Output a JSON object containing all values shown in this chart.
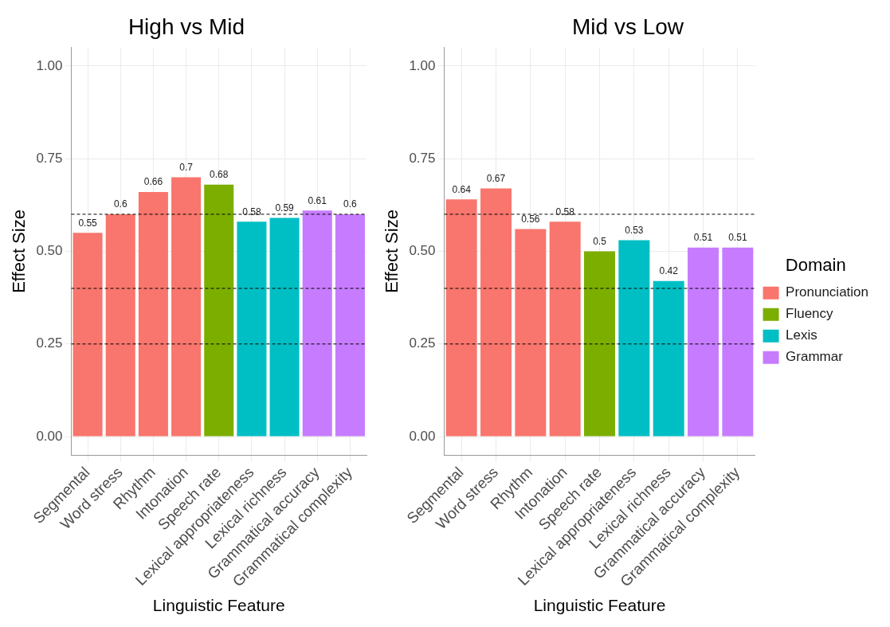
{
  "chart_data": [
    {
      "type": "bar",
      "title": "High vs Mid",
      "xlabel": "Linguistic Feature",
      "ylabel": "Effect Size",
      "data_labels": true,
      "grid": true,
      "legend": false,
      "categories": [
        "Segmental",
        "Word stress",
        "Rhythm",
        "Intonation",
        "Speech rate",
        "Lexical appropriateness",
        "Lexical richness",
        "Grammatical accuracy",
        "Grammatical complexity"
      ],
      "series": [
        {
          "color": "#f8766d",
          "values": [
            0.55,
            0.6,
            0.66,
            0.7,
            null,
            null,
            null,
            null,
            null
          ]
        },
        {
          "color": "#7cae00",
          "values": [
            null,
            null,
            null,
            null,
            0.68,
            null,
            null,
            null,
            null
          ]
        },
        {
          "color": "#00bfc4",
          "values": [
            null,
            null,
            null,
            null,
            null,
            0.58,
            0.59,
            null,
            null
          ]
        },
        {
          "color": "#c77cff",
          "values": [
            null,
            null,
            null,
            null,
            null,
            null,
            null,
            0.61,
            0.6
          ]
        }
      ],
      "ylim": [
        -0.05,
        1.05
      ],
      "yticks": [
        {
          "value": 0,
          "label": "0.00"
        },
        {
          "value": 0.25,
          "label": "0.25"
        },
        {
          "value": 0.5,
          "label": "0.50"
        },
        {
          "value": 0.75,
          "label": "0.75"
        },
        {
          "value": 1,
          "label": "1.00"
        }
      ],
      "ref_lines": [
        {
          "axis": "y",
          "value": 0.25,
          "color": "#000000",
          "line_style": "dashed"
        },
        {
          "axis": "y",
          "value": 0.4,
          "color": "#000000",
          "line_style": "dashed"
        },
        {
          "axis": "y",
          "value": 0.6,
          "color": "#000000",
          "line_style": "dashed"
        }
      ]
    },
    {
      "type": "bar",
      "title": "Mid vs Low",
      "xlabel": "Linguistic Feature",
      "ylabel": "Effect Size",
      "data_labels": true,
      "grid": true,
      "legend": "right",
      "legend_title": "Domain",
      "categories": [
        "Segmental",
        "Word stress",
        "Rhythm",
        "Intonation",
        "Speech rate",
        "Lexical appropriateness",
        "Lexical richness",
        "Grammatical accuracy",
        "Grammatical complexity"
      ],
      "series": [
        {
          "name": "Pronunciation",
          "color": "#f8766d",
          "values": [
            0.64,
            0.67,
            0.56,
            0.58,
            null,
            null,
            null,
            null,
            null
          ]
        },
        {
          "name": "Fluency",
          "color": "#7cae00",
          "values": [
            null,
            null,
            null,
            null,
            0.5,
            null,
            null,
            null,
            null
          ]
        },
        {
          "name": "Lexis",
          "color": "#00bfc4",
          "values": [
            null,
            null,
            null,
            null,
            null,
            0.53,
            0.42,
            null,
            null
          ]
        },
        {
          "name": "Grammar",
          "color": "#c77cff",
          "values": [
            null,
            null,
            null,
            null,
            null,
            null,
            null,
            0.51,
            0.51
          ]
        }
      ],
      "ylim": [
        -0.05,
        1.05
      ],
      "yticks": [
        {
          "value": 0,
          "label": "0.00"
        },
        {
          "value": 0.25,
          "label": "0.25"
        },
        {
          "value": 0.5,
          "label": "0.50"
        },
        {
          "value": 0.75,
          "label": "0.75"
        },
        {
          "value": 1,
          "label": "1.00"
        }
      ],
      "ref_lines": [
        {
          "axis": "y",
          "value": 0.25,
          "color": "#000000",
          "line_style": "dashed"
        },
        {
          "axis": "y",
          "value": 0.4,
          "color": "#000000",
          "line_style": "dashed"
        },
        {
          "axis": "y",
          "value": 0.6,
          "color": "#000000",
          "line_style": "dashed"
        }
      ]
    }
  ]
}
